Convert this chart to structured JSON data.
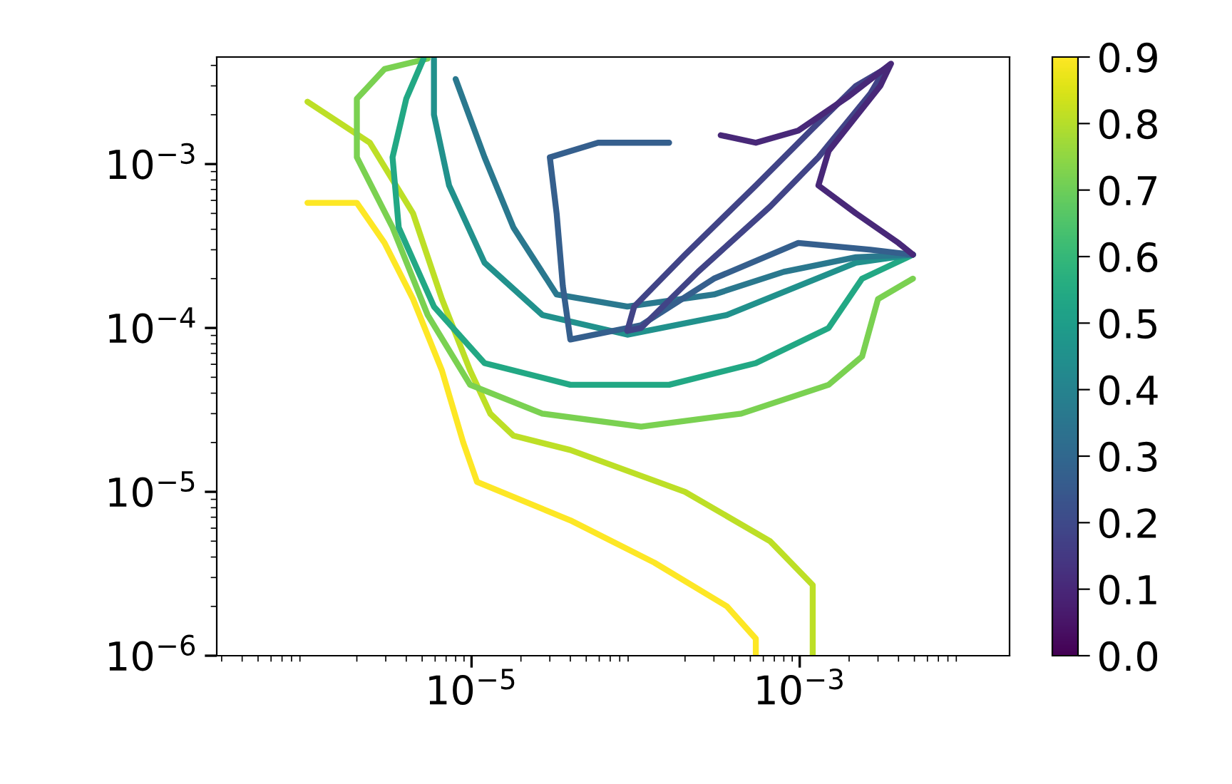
{
  "chart_data": {
    "type": "line",
    "log": "xy",
    "grid": false,
    "legend": false,
    "marker": "none",
    "line_style": "solid",
    "xlim": [
      2.8e-07,
      0.019
    ],
    "ylim": [
      1e-06,
      0.0045
    ],
    "xticks": [
      {
        "value": 1e-05,
        "label": "10$^{−5}$"
      },
      {
        "value": 0.001,
        "label": "10$^{−3}$"
      }
    ],
    "yticks": [
      {
        "value": 1e-06,
        "label": "10$^{−6}$"
      },
      {
        "value": 1e-05,
        "label": "10$^{−5}$"
      },
      {
        "value": 0.0001,
        "label": "10$^{−4}$"
      },
      {
        "value": 0.001,
        "label": "10$^{−3}$"
      }
    ],
    "clim": [
      0,
      0.9
    ],
    "cticks": [
      {
        "value": 0,
        "label": "0.0"
      },
      {
        "value": 0.1,
        "label": "0.1"
      },
      {
        "value": 0.2,
        "label": "0.2"
      },
      {
        "value": 0.3,
        "label": "0.3"
      },
      {
        "value": 0.4,
        "label": "0.4"
      },
      {
        "value": 0.5,
        "label": "0.5"
      },
      {
        "value": 0.6,
        "label": "0.6"
      },
      {
        "value": 0.7,
        "label": "0.7"
      },
      {
        "value": 0.8,
        "label": "0.8"
      },
      {
        "value": 0.9,
        "label": "0.9"
      }
    ],
    "series": [
      {
        "color": "#fde725",
        "x": [
          1e-06,
          2e-06,
          2.95e-06,
          4.4e-06,
          6.6e-06,
          8.9e-06,
          1.08e-05,
          4e-05,
          0.00013,
          0.00036,
          0.00054,
          0.00054
        ],
        "values": [
          0.00058,
          0.00058,
          0.00033,
          0.00015,
          5.5e-05,
          2e-05,
          1.15e-05,
          6.7e-06,
          3.7e-06,
          2e-06,
          1.27e-06,
          1e-06
        ]
      },
      {
        "color": "#bddf26",
        "x": [
          1e-06,
          2.4e-06,
          4.4e-06,
          6.6e-06,
          9.8e-06,
          1.3e-05,
          1.8e-05,
          4e-05,
          0.0002,
          0.00066,
          0.0012,
          0.0012
        ],
        "values": [
          0.0024,
          0.00135,
          0.0005,
          0.00015,
          5.5e-05,
          3e-05,
          2.2e-05,
          1.8e-05,
          1e-05,
          5e-06,
          2.7e-06,
          1e-06
        ]
      },
      {
        "color": "#7ad151",
        "x": [
          5.4e-06,
          2.95e-06,
          2e-06,
          2e-06,
          3.3e-06,
          5.4e-06,
          9.8e-06,
          2.7e-05,
          0.000108,
          0.00044,
          0.0015,
          0.0024,
          0.003,
          0.0049
        ],
        "values": [
          0.0044,
          0.0038,
          0.0025,
          0.0011,
          0.00041,
          0.00012,
          4.5e-05,
          3e-05,
          2.5e-05,
          3e-05,
          4.5e-05,
          6.7e-05,
          0.00015,
          0.0002
        ]
      },
      {
        "color": "#22a884",
        "x": [
          5.1e-06,
          4e-06,
          3.3e-06,
          3.6e-06,
          5.9e-06,
          1.2e-05,
          4e-05,
          0.00016,
          0.00054,
          0.0015,
          0.0024,
          0.0049
        ],
        "values": [
          0.0044,
          0.0025,
          0.0011,
          0.00041,
          0.000135,
          6.1e-05,
          4.5e-05,
          4.5e-05,
          6.1e-05,
          0.0001,
          0.0002,
          0.00028
        ]
      },
      {
        "color": "#21918c",
        "x": [
          5.9e-06,
          5.9e-06,
          7.3e-06,
          1.2e-05,
          2.7e-05,
          8.9e-05,
          0.00036,
          0.00098,
          0.0022,
          0.0049
        ],
        "values": [
          0.0044,
          0.002,
          0.00074,
          0.00025,
          0.00012,
          9.1e-05,
          0.00012,
          0.00018,
          0.00025,
          0.00028
        ]
      },
      {
        "color": "#2a788e",
        "x": [
          8e-06,
          1.2e-05,
          1.8e-05,
          3.3e-05,
          8.9e-05,
          0.0003,
          0.0008,
          0.0022,
          0.0049
        ],
        "values": [
          0.0033,
          0.0011,
          0.00041,
          0.00016,
          0.000135,
          0.00016,
          0.00022,
          0.00027,
          0.00028
        ]
      },
      {
        "color": "#355f8d",
        "x": [
          0.00016,
          5.9e-05,
          3e-05,
          3.3e-05,
          3.6e-05,
          4e-05,
          0.000108,
          0.0003,
          0.00098,
          0.0027,
          0.0049
        ],
        "values": [
          0.00135,
          0.00135,
          0.0011,
          0.0005,
          0.00018,
          8.5e-05,
          0.000104,
          0.0002,
          0.00033,
          0.0003,
          0.00028
        ]
      },
      {
        "color": "#414487",
        "x": [
          8.9e-05,
          9.8e-05,
          0.0002,
          0.00054,
          0.0012,
          0.0022,
          0.0033
        ],
        "values": [
          9.6e-05,
          0.000135,
          0.00028,
          0.00074,
          0.00165,
          0.003,
          0.0038
        ]
      },
      {
        "color": "#414487",
        "x": [
          0.0033,
          0.0027,
          0.0013,
          0.00066,
          0.00024,
          0.000108,
          8.9e-05
        ],
        "values": [
          0.0038,
          0.0027,
          0.0011,
          0.00055,
          0.00022,
          0.0001,
          9.6e-05
        ]
      },
      {
        "color": "#482878",
        "x": [
          0.00033,
          0.00054,
          0.00098,
          0.002,
          0.0036,
          0.0031,
          0.0015,
          0.0013,
          0.0022,
          0.004,
          0.0049
        ],
        "values": [
          0.0015,
          0.00135,
          0.0016,
          0.0026,
          0.0041,
          0.003,
          0.0012,
          0.00074,
          0.0005,
          0.00033,
          0.00028
        ]
      }
    ]
  }
}
